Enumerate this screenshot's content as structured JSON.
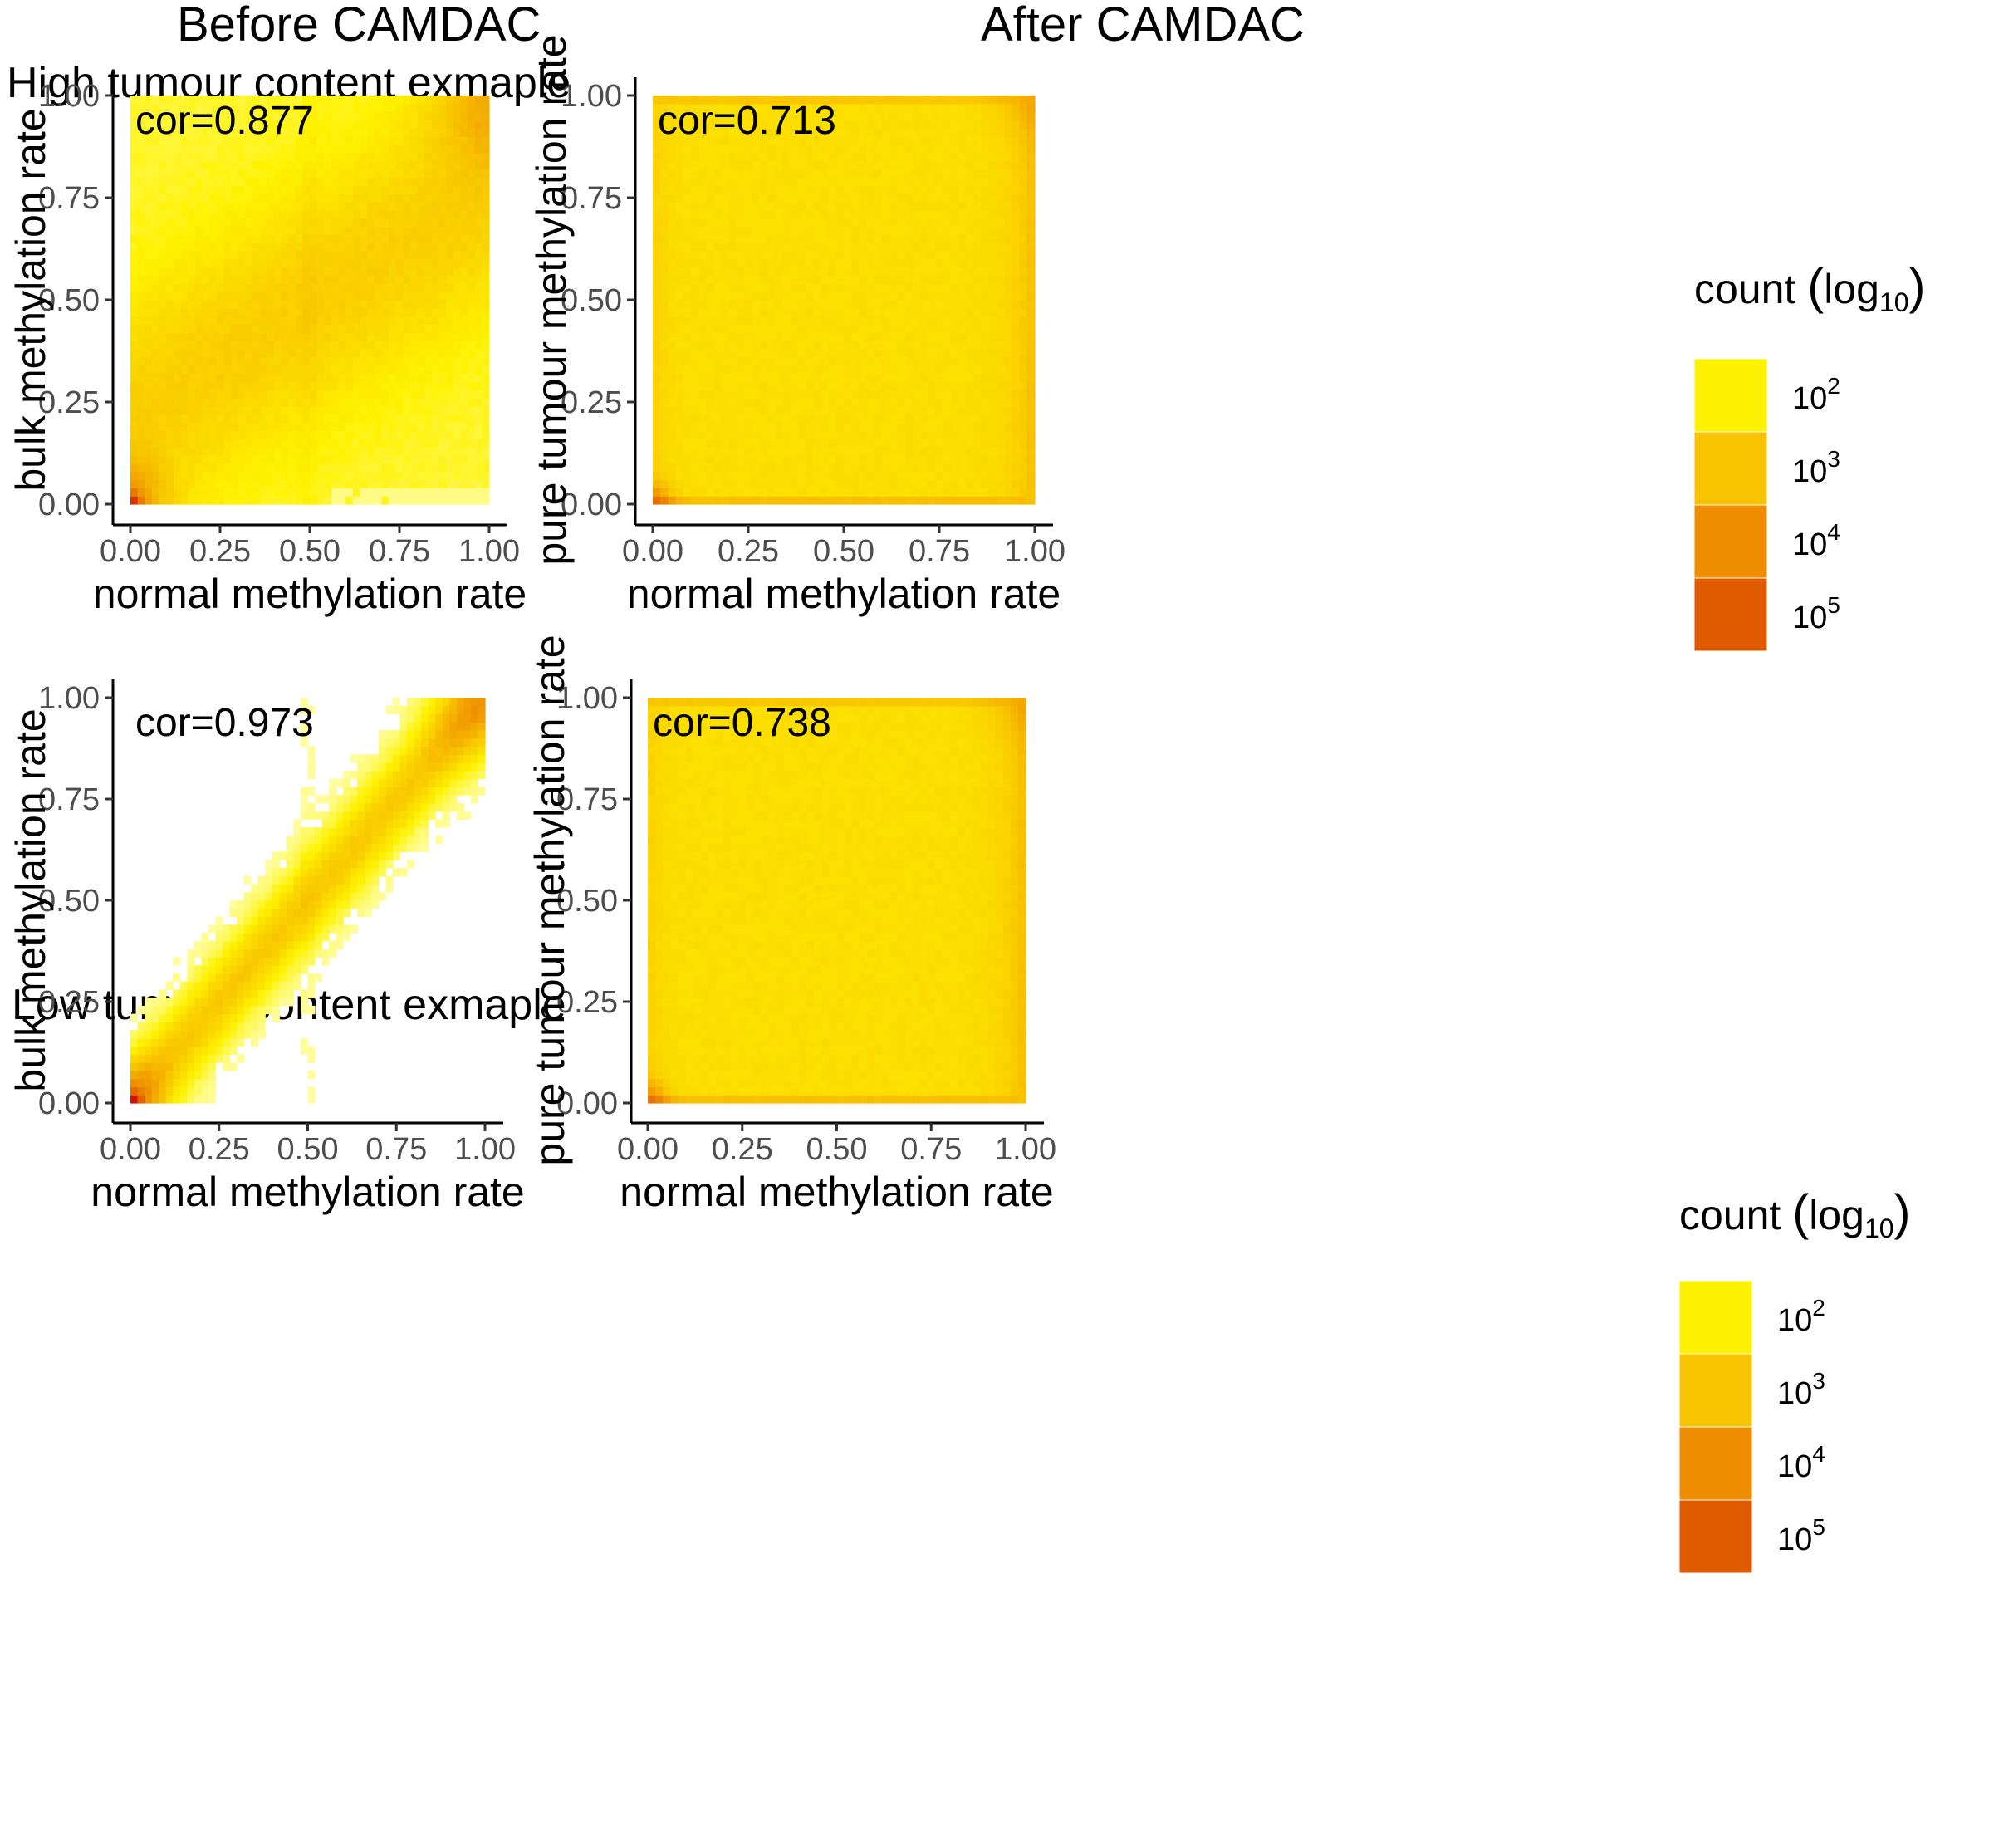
{
  "figure": {
    "col_titles": [
      "Before CAMDAC",
      "After CAMDAC"
    ],
    "row_titles": [
      "High tumour content exmaple",
      "Low tumour content exmaple"
    ]
  },
  "chart_data": [
    {
      "type": "heatmap",
      "title": "",
      "xlabel": "normal methylation rate",
      "ylabel": "bulk methylation rate",
      "xlim": [
        0,
        1
      ],
      "ylim": [
        0,
        1
      ],
      "xticks": [
        "0.00",
        "0.25",
        "0.50",
        "0.75",
        "1.00"
      ],
      "yticks": [
        "0.00",
        "0.25",
        "0.50",
        "0.75",
        "1.00"
      ],
      "annotation": "cor=0.877",
      "correlation": 0.877,
      "bins": 50,
      "pattern": "diagonal_high_purity",
      "grid": false
    },
    {
      "type": "heatmap",
      "title": "",
      "xlabel": "normal methylation rate",
      "ylabel": "pure tumour methylation rate",
      "xlim": [
        0,
        1
      ],
      "ylim": [
        0,
        1
      ],
      "xticks": [
        "0.00",
        "0.25",
        "0.50",
        "0.75",
        "1.00"
      ],
      "yticks": [
        "0.00",
        "0.25",
        "0.50",
        "0.75",
        "1.00"
      ],
      "annotation": "cor=0.713",
      "correlation": 0.713,
      "bins": 50,
      "pattern": "uniform",
      "grid": false
    },
    {
      "type": "heatmap",
      "title": "",
      "xlabel": "normal methylation rate",
      "ylabel": "bulk methylation rate",
      "xlim": [
        0,
        1
      ],
      "ylim": [
        0,
        1
      ],
      "xticks": [
        "0.00",
        "0.25",
        "0.50",
        "0.75",
        "1.00"
      ],
      "yticks": [
        "0.00",
        "0.25",
        "0.50",
        "0.75",
        "1.00"
      ],
      "annotation": "cor=0.973",
      "correlation": 0.973,
      "bins": 50,
      "pattern": "diagonal_low_purity",
      "grid": false
    },
    {
      "type": "heatmap",
      "title": "",
      "xlabel": "normal methylation rate",
      "ylabel": "pure tumour methylation rate",
      "xlim": [
        0,
        1
      ],
      "ylim": [
        0,
        1
      ],
      "xticks": [
        "0.00",
        "0.25",
        "0.50",
        "0.75",
        "1.00"
      ],
      "yticks": [
        "0.00",
        "0.25",
        "0.50",
        "0.75",
        "1.00"
      ],
      "annotation": "cor=0.738",
      "correlation": 0.738,
      "bins": 50,
      "pattern": "uniform",
      "grid": false
    }
  ],
  "legends": [
    {
      "title_main": "count ",
      "title_log": "log",
      "title_sub": "10",
      "entries": [
        {
          "base": "10",
          "exp": "2",
          "color": "#fff200"
        },
        {
          "base": "10",
          "exp": "3",
          "color": "#f8c300"
        },
        {
          "base": "10",
          "exp": "4",
          "color": "#ee8d00"
        },
        {
          "base": "10",
          "exp": "5",
          "color": "#e05a00"
        }
      ]
    },
    {
      "title_main": "count ",
      "title_log": "log",
      "title_sub": "10",
      "entries": [
        {
          "base": "10",
          "exp": "2",
          "color": "#fff200"
        },
        {
          "base": "10",
          "exp": "3",
          "color": "#f8c300"
        },
        {
          "base": "10",
          "exp": "4",
          "color": "#ee8d00"
        },
        {
          "base": "10",
          "exp": "5",
          "color": "#e05a00"
        }
      ]
    }
  ]
}
